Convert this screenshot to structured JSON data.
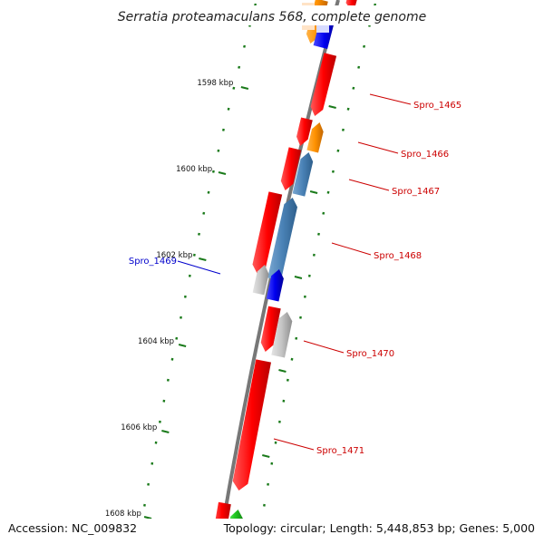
{
  "title": "Serratia proteamaculans 568, complete genome",
  "footer": {
    "accession": "Accession: NC_009832",
    "topology": "Topology: circular; Length: 5,448,853 bp; Genes: 5,000"
  },
  "colors": {
    "backbone": "#777777",
    "tick": "#1a7a1a",
    "label_red": "#cc0000",
    "label_blue": "#0000cc"
  },
  "kbp_labels": [
    {
      "name": "tick-1598",
      "text": "1598 kbp",
      "pos_kbp": 1598
    },
    {
      "name": "tick-1600",
      "text": "1600 kbp",
      "pos_kbp": 1600
    },
    {
      "name": "tick-1602",
      "text": "1602 kbp",
      "pos_kbp": 1602
    },
    {
      "name": "tick-1604",
      "text": "1604 kbp",
      "pos_kbp": 1604
    },
    {
      "name": "tick-1606",
      "text": "1606 kbp",
      "pos_kbp": 1606
    },
    {
      "name": "tick-1608",
      "text": "1608 kbp",
      "pos_kbp": 1608
    }
  ],
  "gene_labels": [
    {
      "name": "spro-1465",
      "text": "Spro_1465",
      "color": "#cc0000"
    },
    {
      "name": "spro-1466",
      "text": "Spro_1466",
      "color": "#cc0000"
    },
    {
      "name": "spro-1467",
      "text": "Spro_1467",
      "color": "#cc0000"
    },
    {
      "name": "spro-1468",
      "text": "Spro_1468",
      "color": "#cc0000"
    },
    {
      "name": "spro-1469",
      "text": "Spro_1469",
      "color": "#0000cc"
    },
    {
      "name": "spro-1470",
      "text": "Spro_1470",
      "color": "#cc0000"
    },
    {
      "name": "spro-1471",
      "text": "Spro_1471",
      "color": "#cc0000"
    }
  ]
}
